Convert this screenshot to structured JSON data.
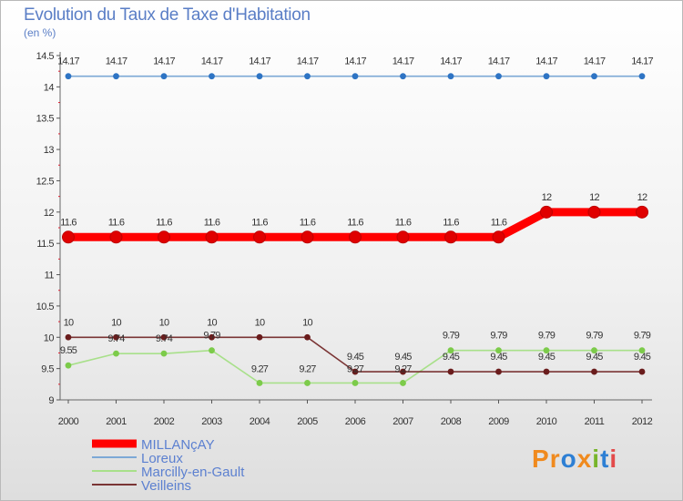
{
  "title": "Evolution du Taux de Taxe d'Habitation",
  "subtitle": "(en %)",
  "logo": {
    "text": "Proxiti",
    "letters": [
      "P",
      "r",
      "o",
      "x",
      "i",
      "t",
      "i"
    ],
    "colors": [
      "#f08a1e",
      "#f08a1e",
      "#2d7fd4",
      "#f08a1e",
      "#77b52b",
      "#2d7fd4",
      "#e34a4a"
    ]
  },
  "chart_data": {
    "type": "line",
    "title": "Evolution du Taux de Taxe d'Habitation",
    "ylabel": "(en %)",
    "ylim": [
      9,
      14.5
    ],
    "yticks": [
      "9",
      "9.5",
      "10",
      "10.5",
      "11",
      "11.5",
      "12",
      "12.5",
      "13",
      "13.5",
      "14",
      "14.5"
    ],
    "x": [
      "2000",
      "2001",
      "2002",
      "2003",
      "2004",
      "2005",
      "2006",
      "2007",
      "2008",
      "2009",
      "2010",
      "2011",
      "2012"
    ],
    "series": [
      {
        "name": "MILLANçAY",
        "color": "#ff0000",
        "marker": "#e00000",
        "values": [
          11.6,
          11.6,
          11.6,
          11.6,
          11.6,
          11.6,
          11.6,
          11.6,
          11.6,
          11.6,
          12,
          12,
          12
        ],
        "labels": [
          "11.6",
          "11.6",
          "11.6",
          "11.6",
          "11.6",
          "11.6",
          "11.6",
          "11.6",
          "11.6",
          "11.6",
          "12",
          "12",
          "12"
        ]
      },
      {
        "name": "Loreux",
        "color": "#7ca8d6",
        "marker": "#2e74c4",
        "values": [
          14.17,
          14.17,
          14.17,
          14.17,
          14.17,
          14.17,
          14.17,
          14.17,
          14.17,
          14.17,
          14.17,
          14.17,
          14.17
        ],
        "labels": [
          "14.17",
          "14.17",
          "14.17",
          "14.17",
          "14.17",
          "14.17",
          "14.17",
          "14.17",
          "14.17",
          "14.17",
          "14.17",
          "14.17",
          "14.17"
        ]
      },
      {
        "name": "Marcilly-en-Gault",
        "color": "#a8e08a",
        "marker": "#7ccb4a",
        "values": [
          9.55,
          9.74,
          9.74,
          9.79,
          9.27,
          9.27,
          9.27,
          9.27,
          9.79,
          9.79,
          9.79,
          9.79,
          9.79
        ],
        "labels": [
          "9.55",
          "9.74",
          "9.74",
          "9.79",
          "9.27",
          "9.27",
          "9.27",
          "9.27",
          "9.79",
          "9.79",
          "9.79",
          "9.79",
          "9.79"
        ]
      },
      {
        "name": "Veilleins",
        "color": "#7a3434",
        "marker": "#6a1c1c",
        "values": [
          10,
          10,
          10,
          10,
          10,
          10,
          9.45,
          9.45,
          9.45,
          9.45,
          9.45,
          9.45,
          9.45
        ],
        "labels": [
          "10",
          "10",
          "10",
          "10",
          "10",
          "10",
          "9.45",
          "9.45",
          "9.45",
          "9.45",
          "9.45",
          "9.45",
          "9.45"
        ]
      }
    ],
    "legend_position": "bottom-left",
    "grid": false
  }
}
